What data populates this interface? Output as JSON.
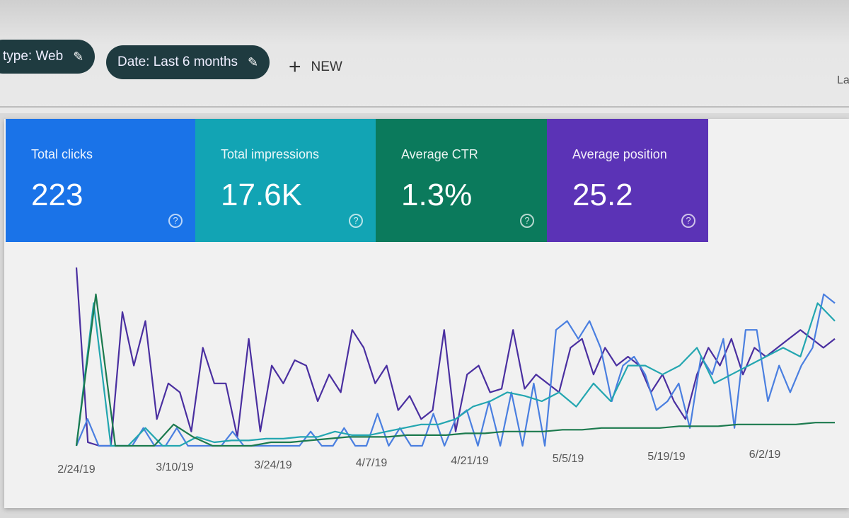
{
  "filters": [
    {
      "label": "type: Web",
      "icon": "pencil-icon"
    },
    {
      "label": "Date: Last 6 months",
      "icon": "pencil-icon"
    }
  ],
  "new_button": {
    "label": "NEW",
    "icon": "plus-icon"
  },
  "cut_off_text": "La",
  "cards": [
    {
      "label": "Total clicks",
      "value": "223",
      "color": "#1a73e8"
    },
    {
      "label": "Total impressions",
      "value": "17.6K",
      "color": "#12a4b4"
    },
    {
      "label": "Average CTR",
      "value": "1.3%",
      "color": "#0b7a5c"
    },
    {
      "label": "Average position",
      "value": "25.2",
      "color": "#5b33b6"
    }
  ],
  "chart_data": {
    "type": "line",
    "x_tick_labels": [
      "2/24/19",
      "3/10/19",
      "3/24/19",
      "4/7/19",
      "4/21/19",
      "5/5/19",
      "5/19/19",
      "6/2/19"
    ],
    "grid": false,
    "y_axis_labels": "none",
    "series": [
      {
        "metric": "impressions",
        "color": "#4a2fa0",
        "values": [
          100,
          2,
          0,
          0,
          75,
          45,
          70,
          15,
          35,
          30,
          8,
          55,
          35,
          35,
          5,
          60,
          8,
          45,
          35,
          48,
          45,
          25,
          40,
          30,
          65,
          55,
          35,
          45,
          20,
          28,
          15,
          20,
          65,
          8,
          40,
          45,
          30,
          32,
          65,
          32,
          40,
          35,
          30,
          55,
          60,
          40,
          55,
          45,
          50,
          45,
          30,
          40,
          25,
          15,
          40,
          55,
          45,
          60,
          40,
          55,
          50,
          55,
          60,
          65,
          60,
          55,
          60
        ]
      },
      {
        "metric": "clicks",
        "color": "#4a7fe0",
        "values": [
          0,
          15,
          0,
          0,
          0,
          0,
          10,
          0,
          0,
          10,
          0,
          0,
          0,
          0,
          8,
          0,
          0,
          0,
          0,
          0,
          0,
          8,
          0,
          0,
          10,
          0,
          0,
          18,
          0,
          10,
          0,
          0,
          18,
          0,
          15,
          20,
          0,
          25,
          0,
          30,
          0,
          35,
          0,
          65,
          70,
          60,
          70,
          55,
          25,
          45,
          50,
          40,
          20,
          25,
          35,
          10,
          50,
          40,
          60,
          10,
          65,
          65,
          25,
          45,
          30,
          45,
          55,
          85,
          80
        ]
      },
      {
        "metric": "ctr",
        "color": "#23a6b0",
        "values": [
          0,
          80,
          0,
          0,
          10,
          0,
          0,
          5,
          2,
          3,
          3,
          4,
          4,
          5,
          5,
          8,
          6,
          6,
          8,
          10,
          12,
          12,
          15,
          22,
          25,
          30,
          28,
          25,
          30,
          22,
          35,
          25,
          45,
          45,
          40,
          45,
          55,
          35,
          40,
          45,
          50,
          55,
          50,
          80,
          70
        ]
      },
      {
        "metric": "position",
        "color": "#1c7a4e",
        "values": [
          0,
          85,
          0,
          0,
          0,
          12,
          5,
          0,
          0,
          0,
          2,
          2,
          3,
          4,
          5,
          5,
          5,
          6,
          6,
          6,
          7,
          7,
          8,
          8,
          8,
          9,
          9,
          10,
          10,
          10,
          10,
          11,
          11,
          11,
          12,
          12,
          12,
          12,
          13,
          13
        ]
      }
    ]
  }
}
